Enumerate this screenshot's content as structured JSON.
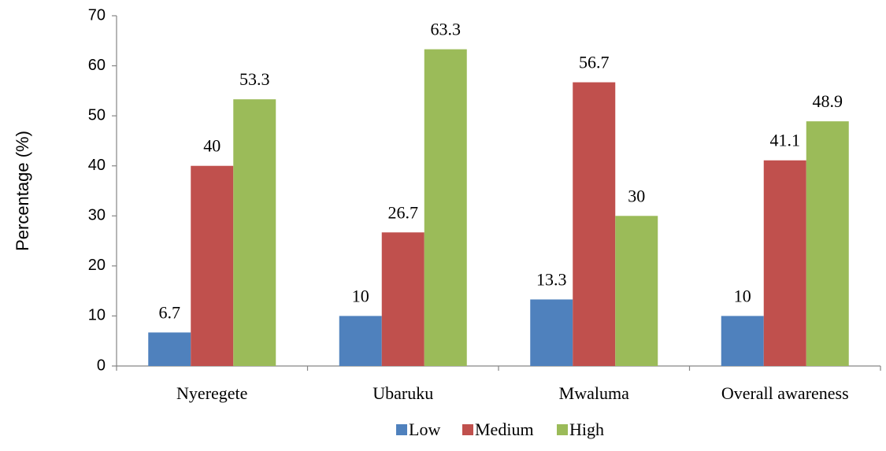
{
  "chart_data": {
    "type": "bar",
    "categories": [
      "Nyeregete",
      "Ubaruku",
      "Mwaluma",
      "Overall awareness"
    ],
    "series": [
      {
        "name": "Low",
        "values": [
          6.7,
          10,
          13.3,
          10
        ],
        "labels": [
          "6.7",
          "10",
          "13.3",
          "10"
        ],
        "color": "#4f81bd"
      },
      {
        "name": "Medium",
        "values": [
          40,
          26.7,
          56.7,
          41.1
        ],
        "labels": [
          "40",
          "26.7",
          "56.7",
          "41.1"
        ],
        "color": "#c0504d"
      },
      {
        "name": "High",
        "values": [
          53.3,
          63.3,
          30,
          48.9
        ],
        "labels": [
          "53.3",
          "63.3",
          "30",
          "48.9"
        ],
        "color": "#9bbb59"
      }
    ],
    "ylabel": "Percentage (%)",
    "ylim": [
      0,
      70
    ],
    "yticks": [
      "0",
      "10",
      "20",
      "30",
      "40",
      "50",
      "60",
      "70"
    ],
    "legend_position": "bottom",
    "grid": false
  }
}
